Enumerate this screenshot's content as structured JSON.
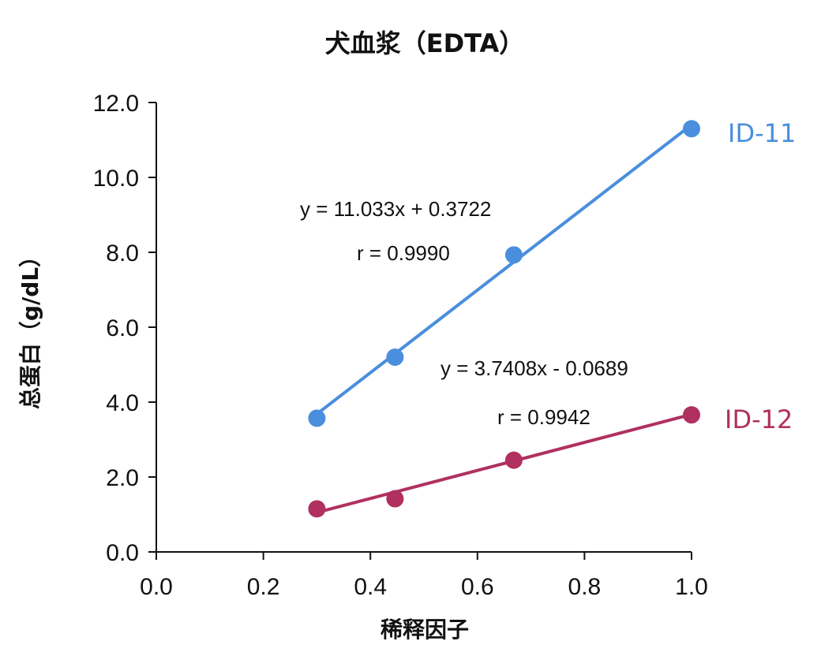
{
  "chart_data": {
    "type": "scatter",
    "title": "犬血浆（EDTA）",
    "xlabel": "稀释因子",
    "ylabel": "总蛋白（g/dL）",
    "xlim": [
      0,
      1
    ],
    "ylim": [
      0,
      12
    ],
    "x_ticks": [
      "0.0",
      "0.2",
      "0.4",
      "0.6",
      "0.8",
      "1.0"
    ],
    "y_ticks": [
      "0.0",
      "2.0",
      "4.0",
      "6.0",
      "8.0",
      "10.0",
      "12.0"
    ],
    "series": [
      {
        "name": "ID-11",
        "color": "#4a8ede",
        "x": [
          0.3,
          0.446,
          0.668,
          1.0
        ],
        "y": [
          3.57,
          5.2,
          7.93,
          11.3
        ],
        "trendline": {
          "slope": 11.033,
          "intercept": 0.3722
        },
        "equation": "y = 11.033x + 0.3722",
        "r_label": "r = 0.9990"
      },
      {
        "name": "ID-12",
        "color": "#b03060",
        "x": [
          0.3,
          0.446,
          0.668,
          1.0
        ],
        "y": [
          1.15,
          1.42,
          2.45,
          3.66
        ],
        "trendline": {
          "slope": 3.7408,
          "intercept": -0.0689
        },
        "equation": "y = 3.7408x - 0.0689",
        "r_label": "r = 0.9942"
      }
    ]
  }
}
